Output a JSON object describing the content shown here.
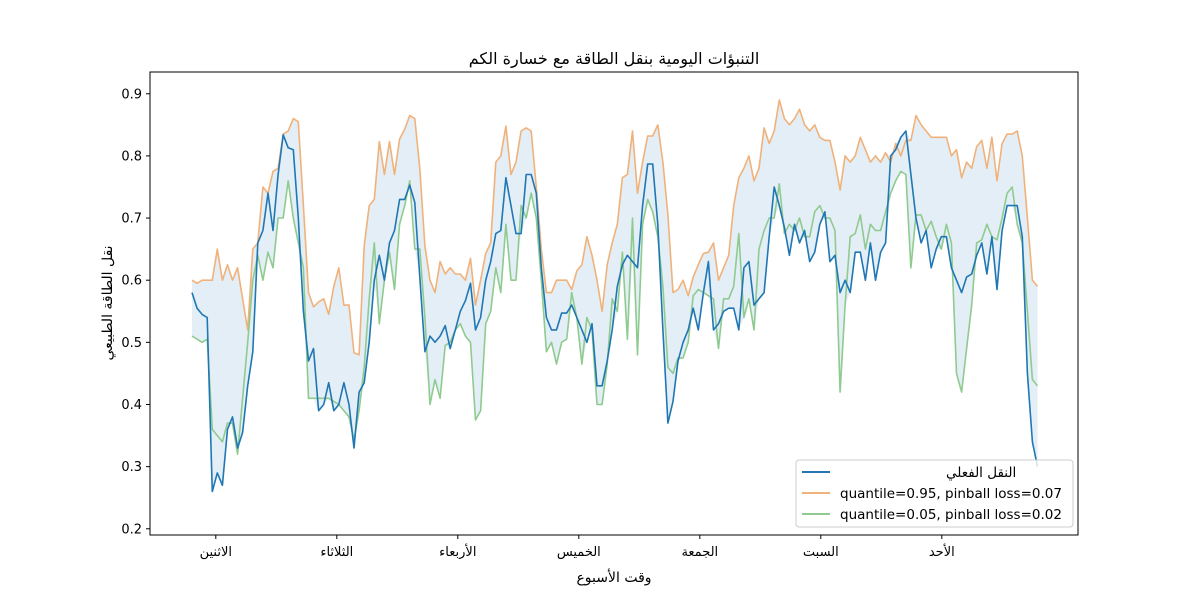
{
  "chart_data": {
    "type": "line",
    "title": "التنبؤات اليومية بنقل الطاقة مع خسارة الكم",
    "xlabel": "وقت الأسبوع",
    "ylabel": "نقل الطاقة الطبيعي",
    "xlim": [
      -8.3,
      175.0
    ],
    "ylim": [
      0.19,
      0.935
    ],
    "grid": false,
    "legend_position": "bottom-right",
    "x_unit": "hour of week",
    "xticks": [
      {
        "value": 4.7,
        "label": "الاثنين"
      },
      {
        "value": 28.6,
        "label": "الثلاثاء"
      },
      {
        "value": 52.5,
        "label": "الأربعاء"
      },
      {
        "value": 76.4,
        "label": "الخميس"
      },
      {
        "value": 100.3,
        "label": "الجمعة"
      },
      {
        "value": 124.2,
        "label": "السبت"
      },
      {
        "value": 148.1,
        "label": "الأحد"
      }
    ],
    "yticks": [
      {
        "value": 0.2,
        "label": "0.2"
      },
      {
        "value": 0.3,
        "label": "0.3"
      },
      {
        "value": 0.4,
        "label": "0.4"
      },
      {
        "value": 0.5,
        "label": "0.5"
      },
      {
        "value": 0.6,
        "label": "0.6"
      },
      {
        "value": 0.7,
        "label": "0.7"
      },
      {
        "value": 0.8,
        "label": "0.8"
      },
      {
        "value": 0.9,
        "label": "0.9"
      }
    ],
    "fill_color": "#1f77b4",
    "series": [
      {
        "name": "النقل الفعلي",
        "color": "#1f77b4",
        "values": [
          0.58,
          0.555,
          0.545,
          0.54,
          0.26,
          0.29,
          0.27,
          0.36,
          0.38,
          0.33,
          0.355,
          0.43,
          0.485,
          0.66,
          0.68,
          0.74,
          0.68,
          0.77,
          0.834,
          0.813,
          0.81,
          0.7,
          0.55,
          0.47,
          0.49,
          0.39,
          0.4,
          0.435,
          0.39,
          0.4,
          0.435,
          0.4,
          0.33,
          0.42,
          0.435,
          0.5,
          0.6,
          0.64,
          0.6,
          0.66,
          0.68,
          0.73,
          0.73,
          0.753,
          0.725,
          0.605,
          0.485,
          0.51,
          0.5,
          0.51,
          0.527,
          0.49,
          0.52,
          0.55,
          0.567,
          0.595,
          0.52,
          0.54,
          0.6,
          0.63,
          0.675,
          0.68,
          0.765,
          0.72,
          0.675,
          0.675,
          0.77,
          0.77,
          0.74,
          0.62,
          0.54,
          0.52,
          0.52,
          0.547,
          0.547,
          0.56,
          0.54,
          0.52,
          0.5,
          0.53,
          0.43,
          0.43,
          0.47,
          0.52,
          0.59,
          0.625,
          0.64,
          0.63,
          0.62,
          0.72,
          0.787,
          0.787,
          0.69,
          0.52,
          0.37,
          0.405,
          0.47,
          0.5,
          0.52,
          0.555,
          0.52,
          0.58,
          0.63,
          0.52,
          0.53,
          0.55,
          0.555,
          0.555,
          0.52,
          0.62,
          0.63,
          0.56,
          0.57,
          0.58,
          0.67,
          0.75,
          0.72,
          0.685,
          0.64,
          0.69,
          0.66,
          0.68,
          0.63,
          0.645,
          0.69,
          0.71,
          0.63,
          0.64,
          0.58,
          0.6,
          0.58,
          0.645,
          0.645,
          0.6,
          0.66,
          0.6,
          0.645,
          0.66,
          0.8,
          0.81,
          0.83,
          0.84,
          0.77,
          0.7,
          0.66,
          0.68,
          0.62,
          0.65,
          0.67,
          0.67,
          0.62,
          0.6,
          0.58,
          0.605,
          0.61,
          0.64,
          0.66,
          0.61,
          0.67,
          0.585,
          0.68,
          0.72,
          0.72,
          0.72,
          0.67,
          0.45,
          0.34,
          0.3
        ]
      },
      {
        "name": "quantile=0.95, pinball loss=0.07",
        "color": "#f0b27a",
        "values": [
          0.6,
          0.595,
          0.6,
          0.6,
          0.6,
          0.65,
          0.6,
          0.625,
          0.6,
          0.62,
          0.57,
          0.52,
          0.65,
          0.66,
          0.75,
          0.74,
          0.775,
          0.78,
          0.835,
          0.84,
          0.86,
          0.855,
          0.72,
          0.58,
          0.557,
          0.565,
          0.57,
          0.545,
          0.59,
          0.62,
          0.56,
          0.56,
          0.483,
          0.48,
          0.655,
          0.72,
          0.73,
          0.823,
          0.77,
          0.823,
          0.77,
          0.827,
          0.843,
          0.865,
          0.86,
          0.78,
          0.655,
          0.6,
          0.58,
          0.63,
          0.61,
          0.62,
          0.61,
          0.61,
          0.6,
          0.635,
          0.56,
          0.6,
          0.643,
          0.66,
          0.79,
          0.8,
          0.848,
          0.77,
          0.79,
          0.84,
          0.845,
          0.84,
          0.75,
          0.65,
          0.58,
          0.58,
          0.6,
          0.6,
          0.6,
          0.585,
          0.615,
          0.625,
          0.67,
          0.64,
          0.6,
          0.55,
          0.625,
          0.66,
          0.69,
          0.765,
          0.77,
          0.84,
          0.74,
          0.79,
          0.832,
          0.832,
          0.85,
          0.79,
          0.705,
          0.58,
          0.585,
          0.6,
          0.575,
          0.605,
          0.625,
          0.643,
          0.645,
          0.66,
          0.6,
          0.62,
          0.64,
          0.72,
          0.765,
          0.78,
          0.8,
          0.76,
          0.78,
          0.845,
          0.82,
          0.84,
          0.89,
          0.86,
          0.85,
          0.86,
          0.875,
          0.85,
          0.84,
          0.85,
          0.83,
          0.825,
          0.825,
          0.79,
          0.745,
          0.8,
          0.79,
          0.8,
          0.83,
          0.81,
          0.79,
          0.8,
          0.79,
          0.805,
          0.79,
          0.82,
          0.8,
          0.825,
          0.825,
          0.865,
          0.85,
          0.84,
          0.83,
          0.83,
          0.83,
          0.83,
          0.8,
          0.81,
          0.765,
          0.79,
          0.78,
          0.815,
          0.825,
          0.78,
          0.83,
          0.76,
          0.82,
          0.835,
          0.835,
          0.84,
          0.8,
          0.7,
          0.6,
          0.59
        ]
      },
      {
        "name": "quantile=0.05, pinball loss=0.02",
        "color": "#8fcb8f",
        "values": [
          0.51,
          0.505,
          0.5,
          0.505,
          0.36,
          0.35,
          0.34,
          0.37,
          0.37,
          0.32,
          0.41,
          0.5,
          0.6,
          0.64,
          0.6,
          0.645,
          0.62,
          0.7,
          0.7,
          0.76,
          0.7,
          0.66,
          0.62,
          0.41,
          0.41,
          0.41,
          0.41,
          0.41,
          0.405,
          0.4,
          0.39,
          0.38,
          0.343,
          0.39,
          0.46,
          0.57,
          0.66,
          0.53,
          0.6,
          0.645,
          0.585,
          0.69,
          0.72,
          0.76,
          0.65,
          0.65,
          0.54,
          0.4,
          0.44,
          0.41,
          0.495,
          0.5,
          0.52,
          0.53,
          0.51,
          0.5,
          0.375,
          0.39,
          0.53,
          0.55,
          0.62,
          0.58,
          0.69,
          0.6,
          0.6,
          0.72,
          0.7,
          0.74,
          0.7,
          0.6,
          0.485,
          0.5,
          0.465,
          0.5,
          0.505,
          0.58,
          0.54,
          0.465,
          0.54,
          0.52,
          0.4,
          0.4,
          0.465,
          0.57,
          0.55,
          0.645,
          0.505,
          0.7,
          0.48,
          0.69,
          0.73,
          0.71,
          0.67,
          0.59,
          0.46,
          0.45,
          0.475,
          0.475,
          0.5,
          0.575,
          0.585,
          0.58,
          0.575,
          0.57,
          0.49,
          0.57,
          0.57,
          0.59,
          0.675,
          0.54,
          0.57,
          0.52,
          0.65,
          0.68,
          0.7,
          0.7,
          0.755,
          0.675,
          0.69,
          0.68,
          0.7,
          0.67,
          0.67,
          0.71,
          0.72,
          0.7,
          0.7,
          0.68,
          0.42,
          0.56,
          0.67,
          0.675,
          0.705,
          0.65,
          0.69,
          0.68,
          0.68,
          0.71,
          0.74,
          0.76,
          0.775,
          0.77,
          0.62,
          0.705,
          0.705,
          0.68,
          0.695,
          0.67,
          0.65,
          0.69,
          0.66,
          0.45,
          0.42,
          0.49,
          0.56,
          0.66,
          0.665,
          0.69,
          0.67,
          0.665,
          0.7,
          0.74,
          0.75,
          0.69,
          0.66,
          0.55,
          0.44,
          0.43
        ]
      }
    ]
  }
}
